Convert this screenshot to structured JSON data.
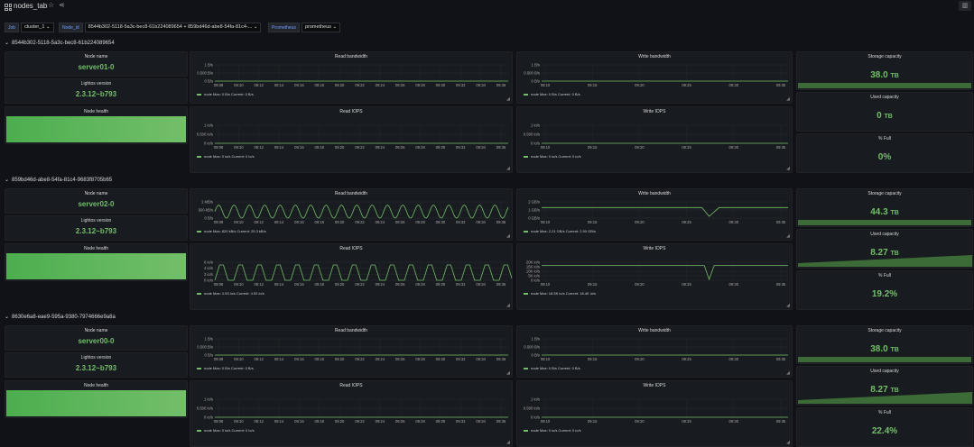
{
  "header": {
    "title": "nodes_tab",
    "add_panel_icon": "add-panel-icon"
  },
  "variables": {
    "job_label": "Job",
    "job_value": "cluster_1",
    "node_id_label": "Node_id",
    "node_id_value": "8544b302-5118-5a3c-bec8-61b224089654 + 859bd46d-abe8-54fa-81c4-...",
    "prometheus_label": "Prometheus",
    "prometheus_value": "prometheus"
  },
  "axes": {
    "read_x": [
      "09:08",
      "09:10",
      "09:12",
      "09:14",
      "09:16",
      "09:18",
      "09:20",
      "09:22",
      "09:24",
      "09:26",
      "09:28",
      "09:30",
      "09:32",
      "09:34",
      "09:36"
    ],
    "write_x": [
      "09:10",
      "09:15",
      "09:20",
      "09:25",
      "09:30",
      "09:35"
    ]
  },
  "rows": [
    {
      "title": "8544b302-5118-5a3c-bec8-61b224089654",
      "node_name_title": "Node name",
      "node_name": "server01-0",
      "version_title": "Lightos version",
      "version": "2.3.12~b793",
      "health_title": "Node health",
      "storage_title": "Storage capacity",
      "storage_value": "38.0",
      "storage_unit": "TB",
      "used_title": "Used capacity",
      "used_value": "0",
      "used_unit": "TB",
      "full_title": "% Full",
      "full_value": "0%",
      "read_bw": {
        "title": "Read bandwidth",
        "y": [
          "1 B/s",
          "0.500 B/s",
          "0 B/s"
        ],
        "legend": "node  Max: 0 B/s  Current: 0 B/s"
      },
      "write_bw": {
        "title": "Write bandwidth",
        "y": [
          "1 B/s",
          "0.500 B/s",
          "0 B/s"
        ],
        "legend": "node  Max: 0 B/s  Current: 0 B/s"
      },
      "read_iops": {
        "title": "Read IOPS",
        "y": [
          "1 io/s",
          "0.500 io/s",
          "0 io/s"
        ],
        "legend": "node  Max: 0 io/s  Current: 0 io/s"
      },
      "write_iops": {
        "title": "Write IOPS",
        "y": [
          "1 io/s",
          "0.500 io/s",
          "0 io/s"
        ],
        "legend": "node  Max: 0 io/s  Current: 0 io/s"
      }
    },
    {
      "title": "859bd46d-abe8-54fa-81c4-9683f8705b65",
      "node_name_title": "Node name",
      "node_name": "server02-0",
      "version_title": "Lightos version",
      "version": "2.3.12~b793",
      "health_title": "Node health",
      "storage_title": "Storage capacity",
      "storage_value": "44.3",
      "storage_unit": "TB",
      "used_title": "Used capacity",
      "used_value": "8.27",
      "used_unit": "TB",
      "full_title": "% Full",
      "full_value": "19.2%",
      "read_bw": {
        "title": "Read bandwidth",
        "y": [
          "1 MB/s",
          "500 kB/s",
          "0 B/s"
        ],
        "legend": "node  Max: 820 kB/s  Current: 25.3 kB/s"
      },
      "write_bw": {
        "title": "Write bandwidth",
        "y": [
          "2 GB/s",
          "1 GB/s",
          "0 GB/s"
        ],
        "legend": "node  Max: 2.21 GB/s  Current: 2.00 GB/s"
      },
      "read_iops": {
        "title": "Read IOPS",
        "y": [
          "6 io/s",
          "4 io/s",
          "2 io/s",
          "0 io/s"
        ],
        "legend": "node  Max: 4.93 io/s  Current: 4.92 io/s"
      },
      "write_iops": {
        "title": "Write IOPS",
        "y": [
          "20K io/s",
          "15K io/s",
          "10K io/s",
          "5K io/s",
          "0 io/s"
        ],
        "legend": "node  Max: 18.5K io/s  Current: 18.4K io/s"
      }
    },
    {
      "title": "8630e6a8-eae9-595a-9380-7974666e9a8a",
      "node_name_title": "Node name",
      "node_name": "server00-0",
      "version_title": "Lightos version",
      "version": "2.3.12~b793",
      "health_title": "Node health",
      "storage_title": "Storage capacity",
      "storage_value": "38.0",
      "storage_unit": "TB",
      "used_title": "Used capacity",
      "used_value": "8.27",
      "used_unit": "TB",
      "full_title": "% Full",
      "full_value": "22.4%",
      "read_bw": {
        "title": "Read bandwidth",
        "y": [
          "1 B/s",
          "0.500 B/s",
          "0 B/s"
        ],
        "legend": "node  Max: 0 B/s  Current: 0 B/s"
      },
      "write_bw": {
        "title": "Write bandwidth",
        "y": [
          "1 B/s",
          "0.500 B/s",
          "0 B/s"
        ],
        "legend": "node  Max: 0 B/s  Current: 0 B/s"
      },
      "read_iops": {
        "title": "Read IOPS",
        "y": [
          "1 io/s",
          "0.500 io/s",
          "0 io/s"
        ],
        "legend": "node  Max: 0 io/s  Current: 0 io/s"
      },
      "write_iops": {
        "title": "Write IOPS",
        "y": [
          "1 io/s",
          "0.500 io/s",
          "0 io/s"
        ],
        "legend": "node  Max: 0 io/s  Current: 0 io/s"
      }
    }
  ]
}
